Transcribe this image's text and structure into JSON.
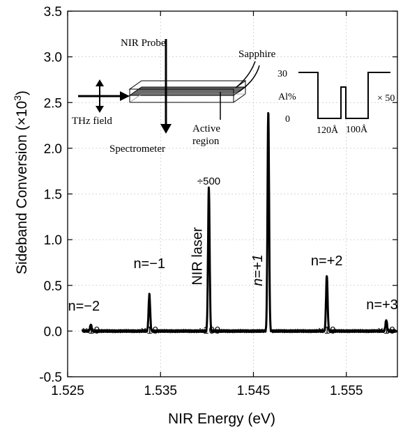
{
  "chart_data": {
    "type": "line",
    "xlabel": "NIR Energy (eV)",
    "ylabel": "Sideband Conversion (×10",
    "ylabel_sup": "3",
    "ylabel_end": ")",
    "xlim": [
      1.525,
      1.5605
    ],
    "ylim": [
      -0.5,
      3.5
    ],
    "xticks": [
      "1.525",
      "1.535",
      "1.545",
      "1.555"
    ],
    "yticks": [
      "-0.5",
      "0.0",
      "0.5",
      "1.0",
      "1.5",
      "2.0",
      "2.5",
      "3.0",
      "3.5"
    ],
    "peaks": [
      {
        "x": 1.5275,
        "y": 0.07,
        "label": "n=−2",
        "scale": "×10"
      },
      {
        "x": 1.5338,
        "y": 0.4,
        "label": "n=−1",
        "scale": "×10"
      },
      {
        "x": 1.5402,
        "y": 1.57,
        "label": "NIR laser",
        "scale_top": "÷500",
        "scale": "÷100"
      },
      {
        "x": 1.5466,
        "y": 2.4,
        "label": "n=+1",
        "scale": ""
      },
      {
        "x": 1.5529,
        "y": 0.61,
        "label": "n=+2",
        "scale": "×10"
      },
      {
        "x": 1.5593,
        "y": 0.12,
        "label": "n=+3",
        "scale": "×10"
      }
    ],
    "inset": {
      "nir_probe": "NIR Probe",
      "sapphire": "Sapphire",
      "thz_field": "THz field",
      "spectrometer": "Spectrometer",
      "active_region_1": "Active",
      "active_region_2": "region",
      "al_30": "30",
      "al_label": "Al%",
      "al_0": "0",
      "well_1": "120Å",
      "well_2": "100Å",
      "times50": "× 50"
    }
  }
}
